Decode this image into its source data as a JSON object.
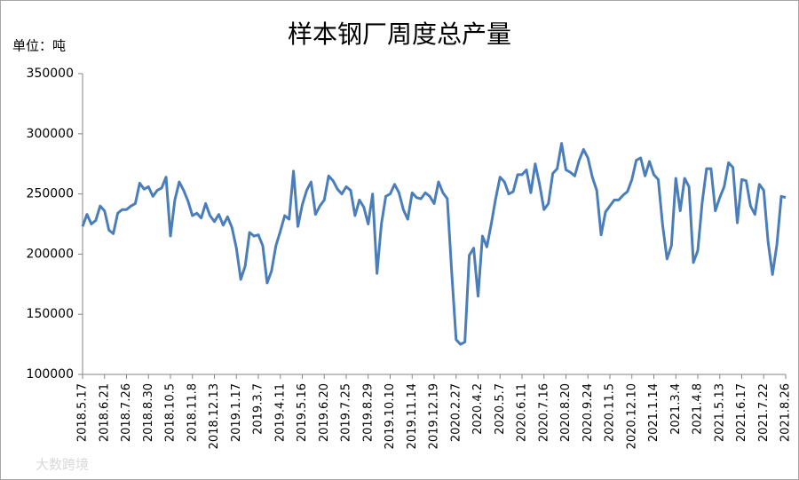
{
  "chart_data": {
    "type": "line",
    "title": "样本钢厂周度总产量",
    "y_unit_label": "单位：吨",
    "watermark": "大数跨境",
    "color": "#4a7ebb",
    "ylim": [
      100000,
      350000
    ],
    "yticks": [
      100000,
      150000,
      200000,
      250000,
      300000,
      350000
    ],
    "categories": [
      "2018.5.17",
      null,
      null,
      null,
      null,
      "2018.6.21",
      null,
      null,
      null,
      null,
      "2018.7.26",
      null,
      null,
      null,
      null,
      "2018.8.30",
      null,
      null,
      null,
      null,
      "2018.10.5",
      null,
      null,
      null,
      null,
      "2018.11.8",
      null,
      null,
      null,
      null,
      "2018.12.13",
      null,
      null,
      null,
      null,
      "2019.1.17",
      null,
      null,
      null,
      null,
      "2019.3.7",
      null,
      null,
      null,
      null,
      "2019.4.11",
      null,
      null,
      null,
      null,
      "2019.5.16",
      null,
      null,
      null,
      null,
      "2019.6.20",
      null,
      null,
      null,
      null,
      "2019.7.25",
      null,
      null,
      null,
      null,
      "2019.8.29",
      null,
      null,
      null,
      null,
      "2019.10.10",
      null,
      null,
      null,
      null,
      "2019.11.14",
      null,
      null,
      null,
      null,
      "2019.12.19",
      null,
      null,
      null,
      null,
      "2020.2.27",
      null,
      null,
      null,
      null,
      "2020.4.2",
      null,
      null,
      null,
      null,
      "2020.5.7",
      null,
      null,
      null,
      null,
      "2020.6.11",
      null,
      null,
      null,
      null,
      "2020.7.16",
      null,
      null,
      null,
      null,
      "2020.8.20",
      null,
      null,
      null,
      null,
      "2020.9.24",
      null,
      null,
      null,
      null,
      "2020.11.5",
      null,
      null,
      null,
      null,
      "2020.12.10",
      null,
      null,
      null,
      null,
      "2021.1.14",
      null,
      null,
      null,
      null,
      "2021.3.4",
      null,
      null,
      null,
      null,
      "2021.4.8",
      null,
      null,
      null,
      null,
      "2021.5.13",
      null,
      null,
      null,
      null,
      "2021.6.17",
      null,
      null,
      null,
      null,
      "2021.7.22",
      null,
      null,
      null,
      null,
      "2021.8.26"
    ],
    "values": [
      223000,
      233000,
      225000,
      228000,
      240000,
      236000,
      220000,
      217000,
      234000,
      237000,
      237000,
      240000,
      242000,
      259000,
      254000,
      256000,
      248000,
      253000,
      255000,
      264000,
      215000,
      245000,
      260000,
      253000,
      244000,
      232000,
      234000,
      230000,
      242000,
      232000,
      227000,
      233000,
      224000,
      231000,
      222000,
      205000,
      179000,
      190000,
      218000,
      215000,
      216000,
      207000,
      176000,
      186000,
      207000,
      219000,
      232000,
      229000,
      269000,
      223000,
      241000,
      253000,
      260000,
      233000,
      240000,
      245000,
      265000,
      261000,
      254000,
      250000,
      256000,
      253000,
      232000,
      245000,
      239000,
      225000,
      250000,
      184000,
      225000,
      248000,
      250000,
      258000,
      251000,
      237000,
      229000,
      251000,
      247000,
      246000,
      251000,
      248000,
      242000,
      260000,
      251000,
      246000,
      185000,
      129000,
      125000,
      127000,
      199000,
      205000,
      165000,
      215000,
      206000,
      225000,
      246000,
      264000,
      260000,
      250000,
      252000,
      266000,
      266000,
      270000,
      251000,
      275000,
      258000,
      237000,
      242000,
      267000,
      271000,
      292000,
      270000,
      268000,
      265000,
      278000,
      287000,
      280000,
      264000,
      253000,
      216000,
      235000,
      240000,
      245000,
      245000,
      249000,
      252000,
      262000,
      278000,
      280000,
      265000,
      277000,
      266000,
      262000,
      224000,
      196000,
      207000,
      263000,
      236000,
      263000,
      256000,
      193000,
      203000,
      243000,
      271000,
      271000,
      236000,
      247000,
      256000,
      276000,
      272000,
      226000,
      262000,
      261000,
      240000,
      233000,
      258000,
      253000,
      210000,
      183000,
      208000,
      248000,
      247000
    ]
  }
}
